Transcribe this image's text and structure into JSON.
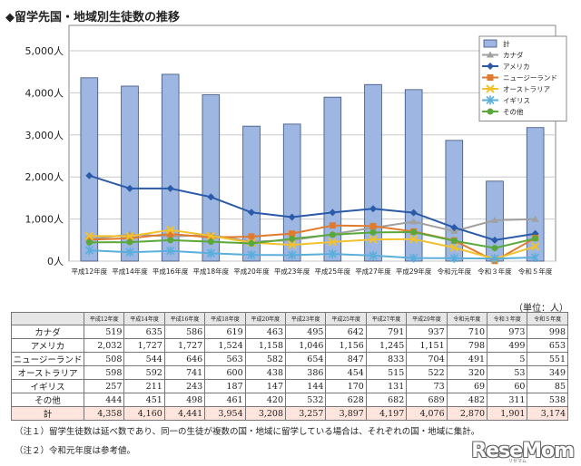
{
  "title": "◆留学先国・地域別生徒数の推移",
  "unit_label": "（単位：人）",
  "notes": [
    "（注１）留学生徒数は延べ数であり、同一の生徒が複数の国・地域に留学している場合は、それぞれの国・地域に集計。",
    "（注２）令和元年度は参考値。"
  ],
  "watermark": "ReseMom",
  "watermark_sub": "リセマム",
  "table": {
    "headers": [
      "",
      "平成12年度",
      "平成14年度",
      "平成16年度",
      "平成18年度",
      "平成20年度",
      "平成23年度",
      "平成25年度",
      "平成27年度",
      "平成29年度",
      "令和元年度",
      "令和３年度",
      "令和５年度"
    ],
    "rows": [
      [
        "カナダ",
        "519",
        "635",
        "586",
        "619",
        "463",
        "495",
        "642",
        "791",
        "937",
        "710",
        "973",
        "998"
      ],
      [
        "アメリカ",
        "2,032",
        "1,727",
        "1,727",
        "1,524",
        "1,158",
        "1,046",
        "1,156",
        "1,245",
        "1,151",
        "798",
        "499",
        "653"
      ],
      [
        "ニュージーランド",
        "508",
        "544",
        "646",
        "563",
        "582",
        "654",
        "847",
        "833",
        "704",
        "491",
        "5",
        "551"
      ],
      [
        "オーストラリア",
        "598",
        "592",
        "741",
        "600",
        "438",
        "386",
        "454",
        "515",
        "522",
        "320",
        "53",
        "349"
      ],
      [
        "イギリス",
        "257",
        "211",
        "243",
        "187",
        "147",
        "144",
        "170",
        "131",
        "73",
        "69",
        "60",
        "85"
      ],
      [
        "その他",
        "444",
        "451",
        "498",
        "461",
        "420",
        "532",
        "628",
        "682",
        "689",
        "482",
        "311",
        "538"
      ],
      [
        "計",
        "4,358",
        "4,160",
        "4,441",
        "3,954",
        "3,208",
        "3,257",
        "3,897",
        "4,197",
        "4,076",
        "2,870",
        "1,901",
        "3,174"
      ]
    ]
  },
  "chart_data": {
    "type": "bar",
    "title": "◆留学先国・地域別生徒数の推移",
    "categories": [
      "平成12年度",
      "平成14年度",
      "平成16年度",
      "平成18年度",
      "平成20年度",
      "平成23年度",
      "平成25年度",
      "平成27年度",
      "平成29年度",
      "令和元年度",
      "令和３年度",
      "令和５年度"
    ],
    "ylim": [
      0,
      5000
    ],
    "yticks": [
      0,
      1000,
      2000,
      3000,
      4000,
      5000
    ],
    "ytick_labels": [
      "0人",
      "1,000人",
      "2,000人",
      "3,000人",
      "4,000人",
      "5,000人"
    ],
    "grid": true,
    "legend_position": "top-right",
    "series": [
      {
        "name": "計",
        "kind": "bar",
        "color": "#9db7e2",
        "marker": "bar",
        "values": [
          4358,
          4160,
          4441,
          3954,
          3208,
          3257,
          3897,
          4197,
          4076,
          2870,
          1901,
          3174
        ]
      },
      {
        "name": "カナダ",
        "kind": "line",
        "color": "#a0a0a0",
        "marker": "triangle",
        "values": [
          519,
          635,
          586,
          619,
          463,
          495,
          642,
          791,
          937,
          710,
          973,
          998
        ]
      },
      {
        "name": "アメリカ",
        "kind": "line",
        "color": "#2a5aa8",
        "marker": "diamond",
        "values": [
          2032,
          1727,
          1727,
          1524,
          1158,
          1046,
          1156,
          1245,
          1151,
          798,
          499,
          653
        ]
      },
      {
        "name": "ニュージーランド",
        "kind": "line",
        "color": "#e07a2e",
        "marker": "square",
        "values": [
          508,
          544,
          646,
          563,
          582,
          654,
          847,
          833,
          704,
          491,
          5,
          551
        ]
      },
      {
        "name": "オーストラリア",
        "kind": "line",
        "color": "#f2c12e",
        "marker": "x",
        "values": [
          598,
          592,
          741,
          600,
          438,
          386,
          454,
          515,
          522,
          320,
          53,
          349
        ]
      },
      {
        "name": "イギリス",
        "kind": "line",
        "color": "#5aaedc",
        "marker": "star",
        "values": [
          257,
          211,
          243,
          187,
          147,
          144,
          170,
          131,
          73,
          69,
          60,
          85
        ]
      },
      {
        "name": "その他",
        "kind": "line",
        "color": "#5aa83a",
        "marker": "circle",
        "values": [
          444,
          451,
          498,
          461,
          420,
          532,
          628,
          682,
          689,
          482,
          311,
          538
        ]
      }
    ]
  }
}
